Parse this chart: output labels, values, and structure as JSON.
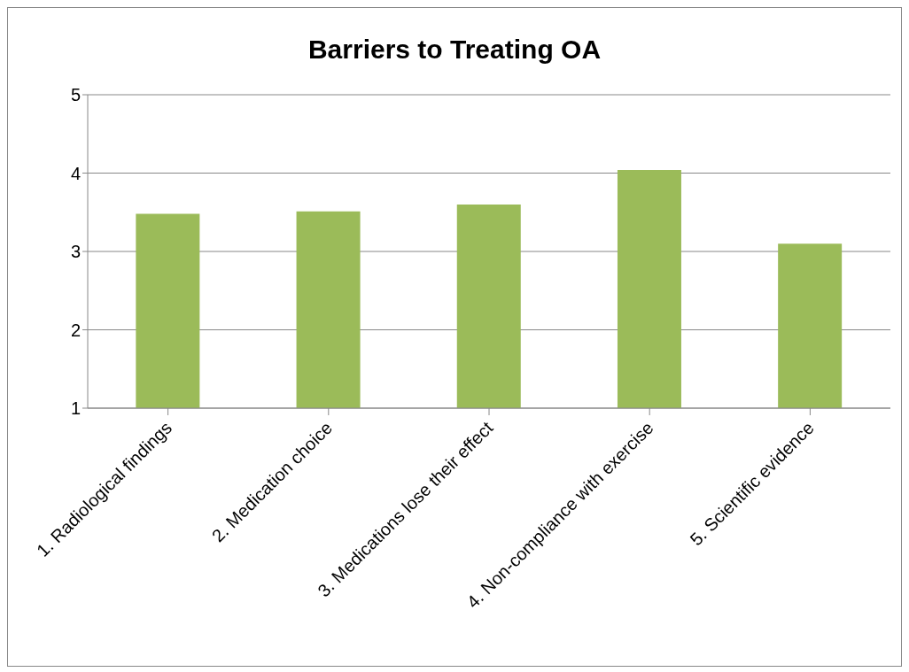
{
  "chart_data": {
    "type": "bar",
    "title": "Barriers to Treating OA",
    "categories": [
      "1. Radiological findings",
      "2. Medication choice",
      "3. Medications lose their effect",
      "4. Non-compliance with exercise",
      "5. Scientific evidence"
    ],
    "values": [
      3.48,
      3.51,
      3.6,
      4.04,
      3.1
    ],
    "color": "#9bbb59",
    "ylim": [
      1,
      5
    ],
    "yticks": [
      1,
      2,
      3,
      4,
      5
    ],
    "grid": "y"
  }
}
